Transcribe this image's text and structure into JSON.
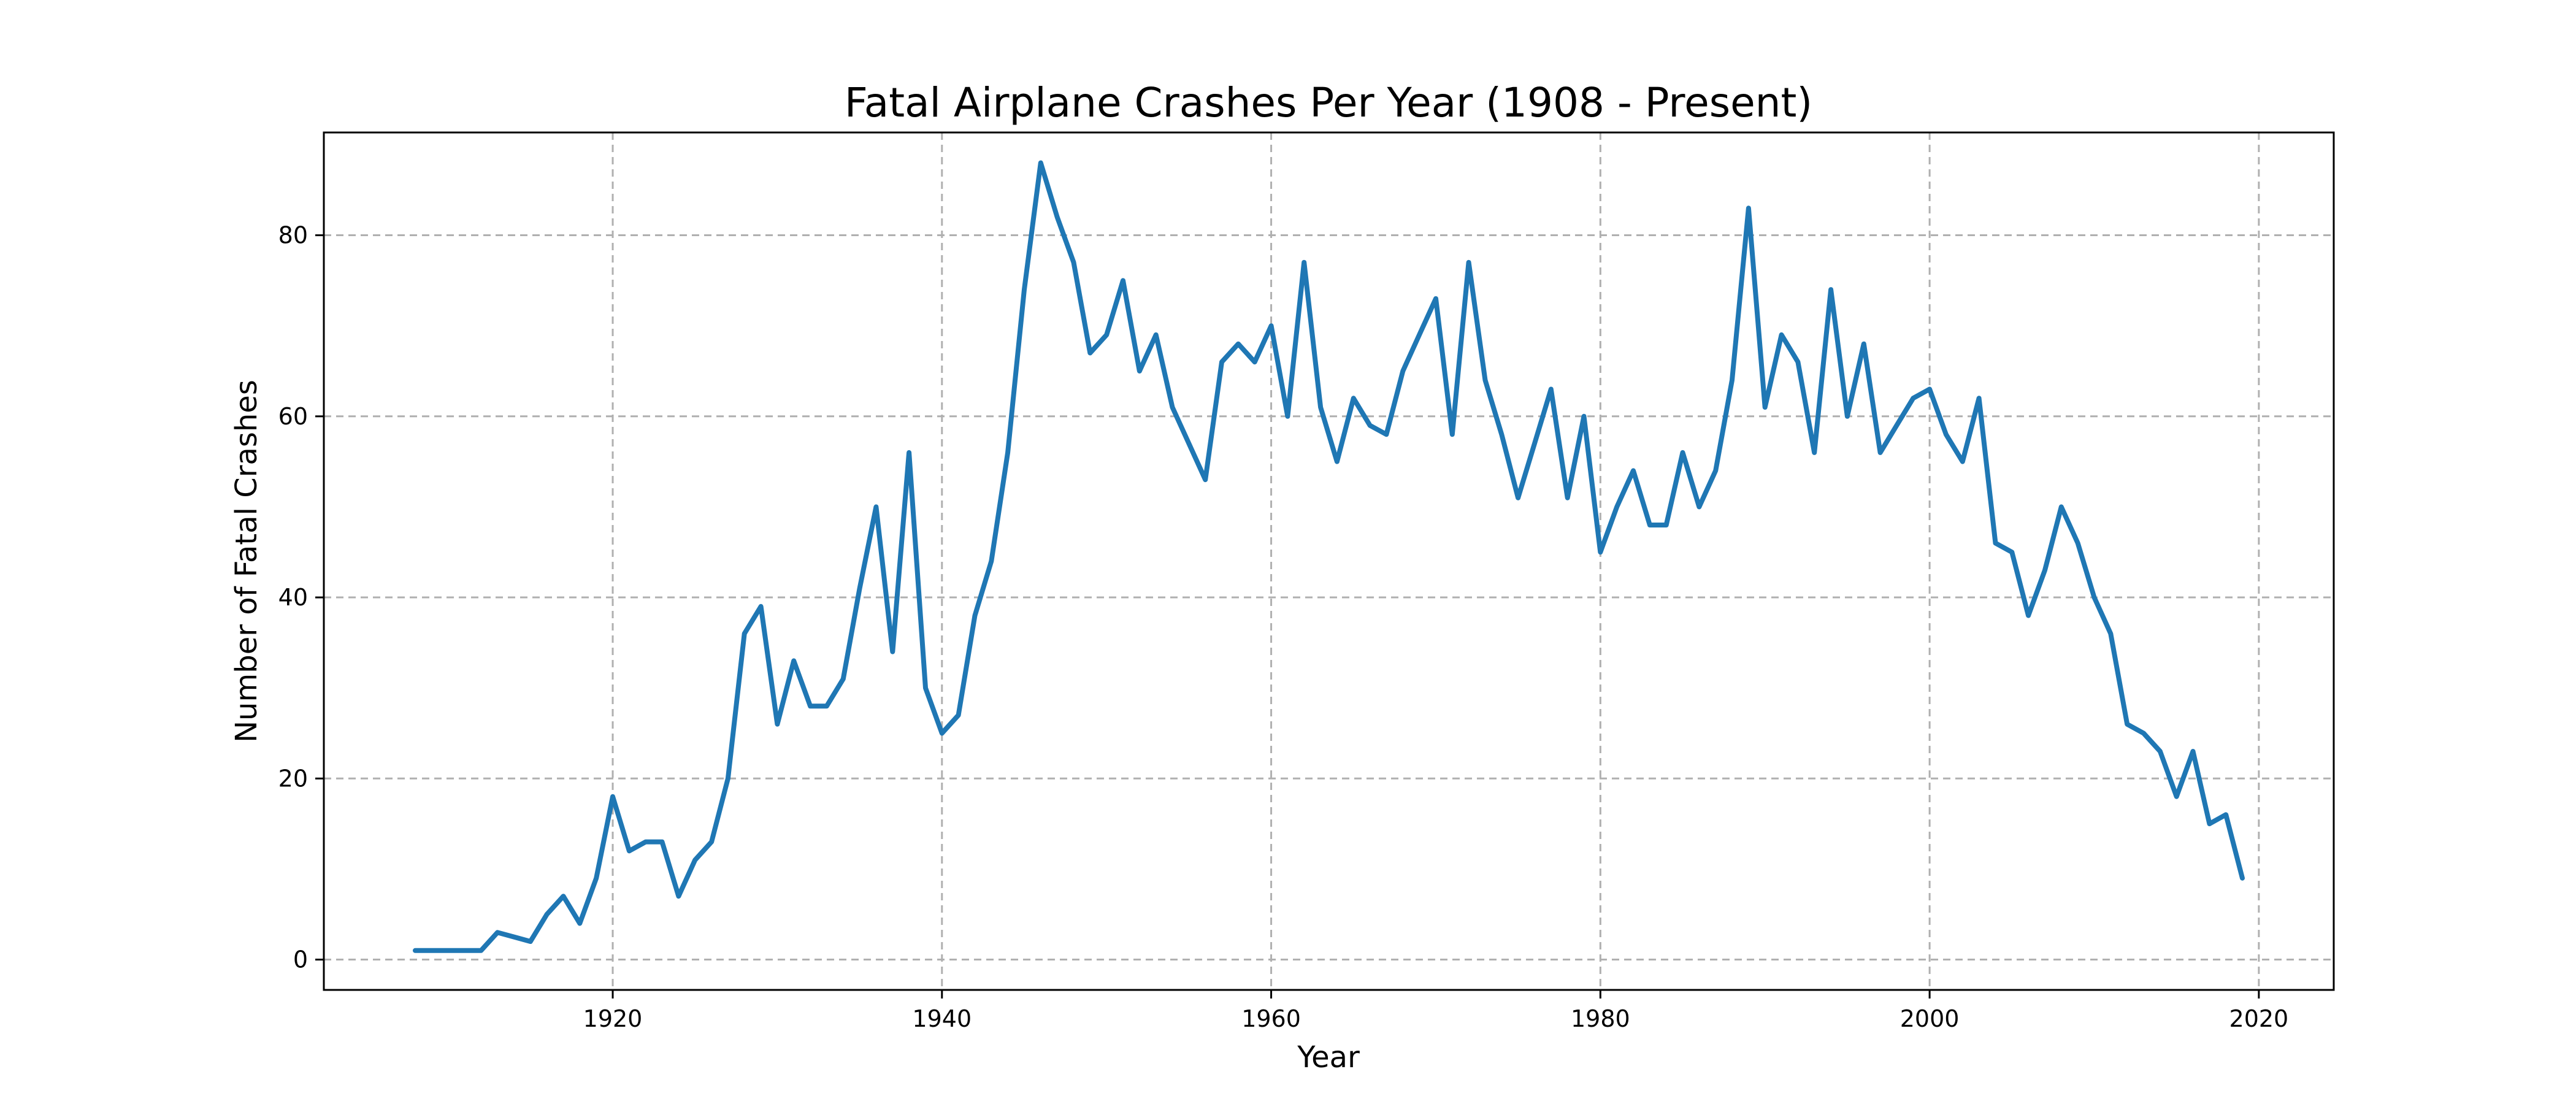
{
  "chart_data": {
    "type": "line",
    "title": "Fatal Airplane Crashes Per Year (1908 - Present)",
    "xlabel": "Year",
    "ylabel": "Number of Fatal Crashes",
    "xlim": [
      1902.45,
      2024.55
    ],
    "ylim": [
      -3.35,
      91.35
    ],
    "x_ticks": [
      1920,
      1940,
      1960,
      1980,
      2000,
      2020
    ],
    "y_ticks": [
      0,
      20,
      40,
      60,
      80
    ],
    "grid": true,
    "grid_style": "dashed",
    "series": [
      {
        "color": "#1f77b4",
        "x": [
          1908,
          1909,
          1910,
          1911,
          1912,
          1913,
          1914,
          1915,
          1916,
          1917,
          1918,
          1919,
          1920,
          1921,
          1922,
          1923,
          1924,
          1925,
          1926,
          1927,
          1928,
          1929,
          1930,
          1931,
          1932,
          1933,
          1934,
          1935,
          1936,
          1937,
          1938,
          1939,
          1940,
          1941,
          1942,
          1943,
          1944,
          1945,
          1946,
          1947,
          1948,
          1949,
          1950,
          1951,
          1952,
          1953,
          1954,
          1955,
          1956,
          1957,
          1958,
          1959,
          1960,
          1961,
          1962,
          1963,
          1964,
          1965,
          1966,
          1967,
          1968,
          1969,
          1970,
          1971,
          1972,
          1973,
          1974,
          1975,
          1976,
          1977,
          1978,
          1979,
          1980,
          1981,
          1982,
          1983,
          1984,
          1985,
          1986,
          1987,
          1988,
          1989,
          1990,
          1991,
          1992,
          1993,
          1994,
          1995,
          1996,
          1997,
          1998,
          1999,
          2000,
          2001,
          2002,
          2003,
          2004,
          2005,
          2006,
          2007,
          2008,
          2009,
          2010,
          2011,
          2012,
          2013,
          2014,
          2015,
          2016,
          2017,
          2018,
          2019
        ],
        "values": [
          1,
          1,
          1,
          1,
          1,
          3,
          2.5,
          2,
          5,
          7,
          4,
          9,
          18,
          12,
          13,
          13,
          7,
          11,
          13,
          20,
          36,
          39,
          26,
          33,
          28,
          28,
          31,
          41,
          50,
          34,
          56,
          30,
          25,
          27,
          38,
          44,
          56,
          74,
          88,
          82,
          77,
          67,
          69,
          75,
          65,
          69,
          61,
          57,
          53,
          66,
          68,
          66,
          70,
          60,
          77,
          61,
          55,
          62,
          59,
          58,
          65,
          69,
          73,
          58,
          77,
          64,
          58,
          51,
          57,
          63,
          51,
          60,
          45,
          50,
          54,
          48,
          48,
          56,
          50,
          54,
          64,
          83,
          61,
          69,
          66,
          56,
          74,
          60,
          68,
          56,
          59,
          62,
          63,
          58,
          55,
          62,
          46,
          45,
          38,
          43,
          50,
          46,
          40,
          36,
          26,
          25,
          23,
          18,
          23,
          15,
          16,
          9
        ]
      }
    ]
  }
}
